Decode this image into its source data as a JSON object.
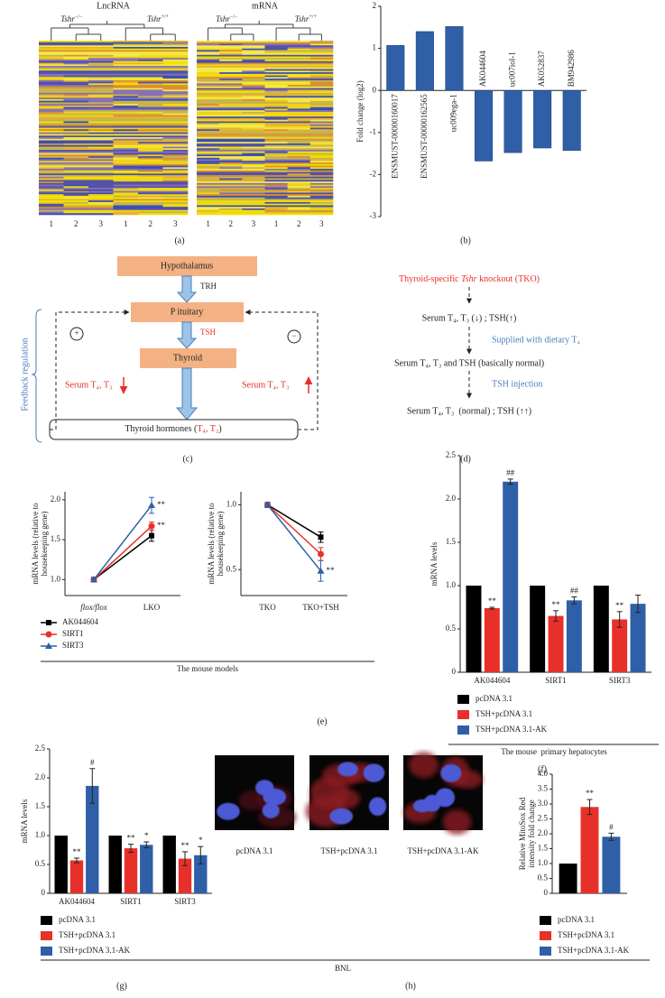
{
  "panel_labels": [
    "(a)",
    "(b)",
    "(c)",
    "(d)",
    "(e)",
    "(f)",
    "(g)",
    "(h)"
  ],
  "heatmaps": [
    {
      "title": "LncRNA",
      "left_group": "Tshr",
      "left_genotype": "−/−",
      "right_group": "Tshr",
      "right_genotype": "+/+",
      "columns": [
        "1",
        "2",
        "3",
        "1",
        "2",
        "3"
      ]
    },
    {
      "title": "mRNA",
      "left_group": "Tshr",
      "left_genotype": "−/−",
      "right_group": "Tshr",
      "right_genotype": "+/+",
      "columns": [
        "1",
        "2",
        "3",
        "1",
        "2",
        "3"
      ]
    }
  ],
  "diagram_c": {
    "nodes": [
      "Hypothalamus",
      "P ituitary",
      "Thyroid"
    ],
    "trh": "TRH",
    "tsh": "TSH",
    "hormones": "Thyroid hormones (",
    "hormones_red": "T₄, T₃",
    "hormones_end": ")",
    "serum_left": "Serum T₄, T₃",
    "serum_right": "Serum T₄, T₃",
    "plus": "+",
    "minus": "−",
    "feedback": "Feedback regulation"
  },
  "diagram_d": {
    "title": [
      "Thyroid-specific ",
      "Tshr",
      " knockout (TKO)"
    ],
    "steps": [
      "Serum T₄, T₃ (↓) ; TSH(↑)",
      "Serum T₄, T₃ and TSH (basically normal)",
      "Serum T₄, T₃  (normal) ; TSH (↑↑)"
    ],
    "treatments": [
      "Supplied with dietary T₄",
      "TSH injection"
    ]
  },
  "images_h": [
    "pcDNA 3.1",
    "TSH+pcDNA 3.1",
    "TSH+pcDNA 3.1-AK"
  ],
  "captions": {
    "e": "The mouse models",
    "f": "The mouse  primary hepatocytes",
    "h": "BNL"
  },
  "chart_data": [
    {
      "type": "bar",
      "ylabel": "Fold change (log2)",
      "categories": [
        "ENSMUST-00000160017",
        "ENSMUST-00000162565",
        "uc009ega-1",
        "AK044604",
        "uc007iol-1",
        "AK052837",
        "BM942986"
      ],
      "values": [
        1.07,
        1.4,
        1.52,
        -1.68,
        -1.48,
        -1.37,
        -1.43
      ],
      "color": "#2f5fa7",
      "ylim": [
        -3,
        2
      ],
      "yticks": [
        -3,
        -2,
        -1,
        0,
        1,
        2
      ]
    },
    {
      "type": "line",
      "ylabel": [
        "mRNA levels (relative to",
        "housekeeping gene)"
      ],
      "categories": [
        "flox/flox",
        "LKO"
      ],
      "series": [
        {
          "name": "AK044604",
          "color": "#000000",
          "marker": "square",
          "values": [
            1,
            1.55
          ],
          "errors": [
            0.02,
            0.07
          ]
        },
        {
          "name": "SIRT1",
          "color": "#e8302a",
          "marker": "circle",
          "values": [
            1,
            1.67
          ],
          "errors": [
            0.02,
            0.05
          ],
          "annotations": [
            null,
            "**"
          ]
        },
        {
          "name": "SIRT3",
          "color": "#2f5fa7",
          "marker": "triangle",
          "values": [
            1,
            1.93
          ],
          "errors": [
            0.02,
            0.1
          ],
          "annotations": [
            null,
            "**"
          ]
        }
      ],
      "ylim": [
        0.8,
        2.1
      ],
      "yticks": [
        {
          "value": 1,
          "label": "1.0"
        },
        1.5,
        {
          "value": 2,
          "label": "2.0"
        }
      ],
      "legend": true
    },
    {
      "type": "line",
      "ylabel": [
        "mRNA levels (relative to",
        "housekeeping gene)"
      ],
      "categories": [
        "TKO",
        "TKO+TSH"
      ],
      "series": [
        {
          "color": "#000000",
          "marker": "square",
          "values": [
            1,
            0.75
          ],
          "errors": [
            0.02,
            0.04
          ]
        },
        {
          "color": "#e8302a",
          "marker": "circle",
          "values": [
            1,
            0.62
          ],
          "errors": [
            0.02,
            0.05
          ]
        },
        {
          "color": "#2f5fa7",
          "marker": "triangle",
          "values": [
            1,
            0.49
          ],
          "errors": [
            0.02,
            0.08
          ],
          "annotations": [
            null,
            "**"
          ]
        }
      ],
      "ylim": [
        0.3,
        1.1
      ],
      "yticks": [
        0.5,
        {
          "value": 1,
          "label": "1.0"
        }
      ],
      "legend": false
    },
    {
      "type": "bar",
      "ylabel": "mRNA levels",
      "categories": [
        "AK044604",
        "SIRT1",
        "SIRT3"
      ],
      "series": [
        {
          "name": "pcDNA 3.1",
          "color": "#000000",
          "values": [
            1,
            1,
            1
          ]
        },
        {
          "name": "TSH+pcDNA 3.1",
          "color": "#e8302a",
          "values": [
            0.74,
            0.65,
            0.61
          ],
          "errors": [
            0.01,
            0.06,
            0.09
          ],
          "annotations": [
            "**",
            "**",
            "**"
          ]
        },
        {
          "name": "TSH+pcDNA 3.1-AK",
          "color": "#2f5fa7",
          "values": [
            2.2,
            0.83,
            0.79
          ],
          "errors": [
            0.03,
            0.04,
            0.1
          ],
          "annotations": [
            "##",
            "##",
            null
          ]
        }
      ],
      "ylim": [
        0,
        2.5
      ],
      "yticks": [
        0,
        0.5,
        {
          "value": 1,
          "label": "1.0"
        },
        1.5,
        {
          "value": 2,
          "label": "2.0"
        },
        2.5
      ],
      "legend": "bottom"
    },
    {
      "type": "bar",
      "ylabel": "mRNA levels",
      "categories": [
        "AK044604",
        "SIRT1",
        "SIRT3"
      ],
      "series": [
        {
          "name": "pcDNA 3.1",
          "color": "#000000",
          "values": [
            1,
            1,
            1
          ]
        },
        {
          "name": "TSH+pcDNA 3.1",
          "color": "#e8302a",
          "values": [
            0.57,
            0.78,
            0.6
          ],
          "errors": [
            0.04,
            0.07,
            0.12
          ],
          "annotations": [
            "**",
            "**",
            "**"
          ]
        },
        {
          "name": "TSH+pcDNA 3.1-AK",
          "color": "#2f5fa7",
          "values": [
            1.86,
            0.84,
            0.66
          ],
          "errors": [
            0.3,
            0.05,
            0.15
          ],
          "annotations": [
            "#",
            "*",
            "*"
          ]
        }
      ],
      "ylim": [
        0,
        2.5
      ],
      "yticks": [
        0,
        0.5,
        {
          "value": 1,
          "label": "1.0"
        },
        1.5,
        {
          "value": 2,
          "label": "2.0"
        },
        2.5
      ],
      "legend": "bottom"
    },
    {
      "type": "bar",
      "ylabel": [
        "Relative MitoSox Red",
        "intensity fold change"
      ],
      "categories": [
        null
      ],
      "series": [
        {
          "name": "pcDNA 3.1",
          "color": "#000000",
          "values": [
            1
          ]
        },
        {
          "name": "TSH+pcDNA 3.1",
          "color": "#e8302a",
          "values": [
            2.9
          ],
          "errors": [
            0.25
          ],
          "annotations": [
            "**"
          ]
        },
        {
          "name": "TSH+pcDNA 3.1-AK",
          "color": "#2f5fa7",
          "values": [
            1.9
          ],
          "errors": [
            0.12
          ],
          "annotations": [
            "#"
          ]
        }
      ],
      "ylim": [
        0,
        4
      ],
      "yticks": [
        0,
        0.5,
        {
          "value": 1,
          "label": "1.0"
        },
        1.5,
        {
          "value": 2,
          "label": "2.0"
        },
        2.5,
        {
          "value": 3,
          "label": "3.0"
        },
        3.5,
        {
          "value": 4,
          "label": "4.0"
        }
      ],
      "legend": "bottom"
    }
  ]
}
